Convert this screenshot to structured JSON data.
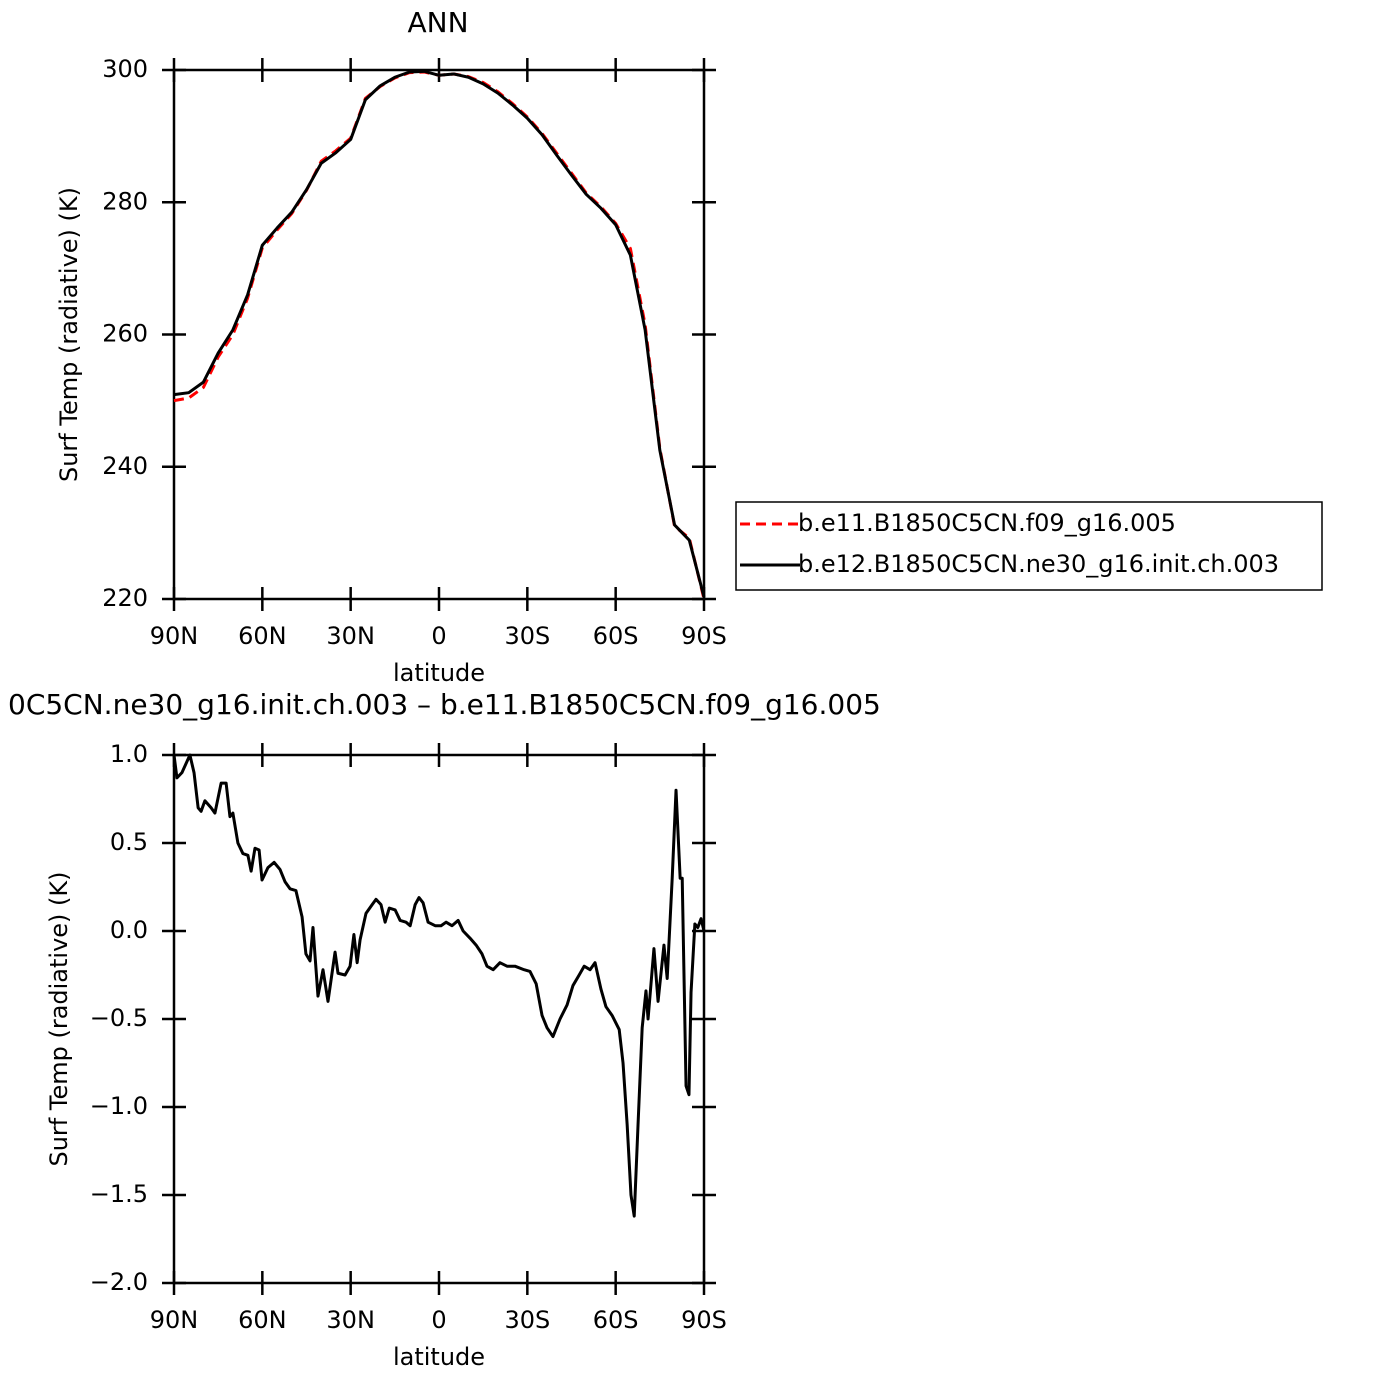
{
  "chart_data": [
    {
      "type": "line",
      "title": "ANN",
      "xlabel": "latitude",
      "ylabel": "Surf Temp (radiative) (K)",
      "xlim": [
        90,
        -90
      ],
      "xticks": [
        {
          "value": 90,
          "label": "90N"
        },
        {
          "value": 60,
          "label": "60N"
        },
        {
          "value": 30,
          "label": "30N"
        },
        0,
        {
          "value": -30,
          "label": "30S"
        },
        {
          "value": -60,
          "label": "60S"
        },
        {
          "value": -90,
          "label": "90S"
        }
      ],
      "ylim": [
        220,
        300
      ],
      "yticks": [
        220,
        240,
        260,
        280,
        300
      ],
      "legend": "right",
      "x": [
        90,
        85,
        80,
        75,
        70,
        65,
        60,
        55,
        50,
        45,
        40,
        35,
        30,
        25,
        20,
        15,
        10,
        5,
        0,
        -5,
        -10,
        -15,
        -20,
        -25,
        -30,
        -35,
        -40,
        -45,
        -50,
        -55,
        -60,
        -65,
        -70,
        -75,
        -80,
        -85,
        -90
      ],
      "series": [
        {
          "name": "b.e11.B1850C5CN.f09_g16.005",
          "color": "#ff0000",
          "style": "dashed",
          "values": [
            250,
            250.4,
            252,
            256.6,
            260,
            265.5,
            273.1,
            275.8,
            278.3,
            281.8,
            286.2,
            287.8,
            289.7,
            295.7,
            297.5,
            298.8,
            299.6,
            299.7,
            299.2,
            299.4,
            299,
            298.1,
            296.7,
            294.9,
            292.9,
            290.4,
            287.4,
            284.4,
            281.4,
            279.3,
            276.8,
            273,
            261.5,
            242.8,
            231,
            229.2,
            220
          ]
        },
        {
          "name": "b.e12.B1850C5CN.ne30_g16.init.ch.003",
          "color": "#000000",
          "style": "solid",
          "values": [
            250.9,
            251.2,
            252.8,
            257.2,
            260.7,
            266,
            273.5,
            276.1,
            278.5,
            281.9,
            285.9,
            287.5,
            289.5,
            295.5,
            297.6,
            298.9,
            299.7,
            299.8,
            299.2,
            299.4,
            298.9,
            297.9,
            296.5,
            294.7,
            292.7,
            290.2,
            287.1,
            284.1,
            281.2,
            279.1,
            276.6,
            272,
            260.7,
            242.5,
            231.2,
            228.9,
            220.3
          ]
        }
      ]
    },
    {
      "type": "line",
      "title": "0C5CN.ne30_g16.init.ch.003 – b.e11.B1850C5CN.f09_g16.005",
      "xlabel": "latitude",
      "ylabel": "Surf Temp (radiative) (K)",
      "xlim": [
        90,
        -90
      ],
      "xticks": [
        {
          "value": 90,
          "label": "90N"
        },
        {
          "value": 60,
          "label": "60N"
        },
        {
          "value": 30,
          "label": "30N"
        },
        0,
        {
          "value": -30,
          "label": "30S"
        },
        {
          "value": -60,
          "label": "60S"
        },
        {
          "value": -90,
          "label": "90S"
        }
      ],
      "ylim": [
        -2,
        1
      ],
      "yticks": [
        {
          "value": -2,
          "label": "−2.0"
        },
        {
          "value": -1.5,
          "label": "−1.5"
        },
        {
          "value": -1,
          "label": "−1.0"
        },
        {
          "value": -0.5,
          "label": "−0.5"
        },
        {
          "value": 0,
          "label": "0.0"
        },
        {
          "value": 0.5,
          "label": "0.5"
        },
        {
          "value": 1,
          "label": "1.0"
        }
      ],
      "x": [
        90,
        89,
        87.3,
        84.6,
        83.2,
        81.8,
        80.8,
        79.5,
        77.4,
        76.1,
        74,
        72.3,
        71,
        70,
        68.3,
        66.6,
        64.9,
        63.8,
        62.5,
        61.1,
        60.1,
        58.1,
        56,
        54,
        52.3,
        50.6,
        48.6,
        46.5,
        45.2,
        43.8,
        42.8,
        41.1,
        39.4,
        37.7,
        35.3,
        34.3,
        31.9,
        30.2,
        28.9,
        27.8,
        26.8,
        24.8,
        22.7,
        21.4,
        19.7,
        18.3,
        16.9,
        14.9,
        13.2,
        11.2,
        9.8,
        8.1,
        6.8,
        5.4,
        3.7,
        1.3,
        -0.7,
        -2.4,
        -4.4,
        -6.5,
        -8.2,
        -10.5,
        -12.6,
        -14.6,
        -16.3,
        -18.4,
        -20.7,
        -23.1,
        -25.8,
        -28.9,
        -30.9,
        -33,
        -35,
        -36.7,
        -38.7,
        -41.1,
        -43.5,
        -45.5,
        -47.6,
        -49.3,
        -51.3,
        -53,
        -55,
        -56.7,
        -58.8,
        -61.2,
        -62.5,
        -63.9,
        -65.2,
        -66.3,
        -67.6,
        -69,
        -70.3,
        -71,
        -73,
        -74.4,
        -76.4,
        -77.5,
        -79.2,
        -80.5,
        -81.9,
        -82.6,
        -83.9,
        -84.9,
        -85.6,
        -86.9,
        -87.9,
        -89,
        -90
      ],
      "series": [
        {
          "color": "#000000",
          "style": "solid",
          "values": [
            1,
            0.87,
            0.9,
            1,
            0.9,
            0.7,
            0.68,
            0.74,
            0.7,
            0.67,
            0.84,
            0.84,
            0.65,
            0.67,
            0.5,
            0.44,
            0.43,
            0.34,
            0.47,
            0.46,
            0.29,
            0.36,
            0.39,
            0.35,
            0.28,
            0.24,
            0.23,
            0.08,
            -0.13,
            -0.17,
            0.02,
            -0.37,
            -0.22,
            -0.4,
            -0.12,
            -0.24,
            -0.25,
            -0.2,
            -0.02,
            -0.18,
            -0.05,
            0.1,
            0.15,
            0.18,
            0.15,
            0.05,
            0.13,
            0.12,
            0.06,
            0.05,
            0.03,
            0.15,
            0.19,
            0.16,
            0.05,
            0.03,
            0.03,
            0.05,
            0.03,
            0.06,
            0,
            -0.04,
            -0.08,
            -0.13,
            -0.2,
            -0.22,
            -0.18,
            -0.2,
            -0.2,
            -0.22,
            -0.23,
            -0.3,
            -0.48,
            -0.55,
            -0.6,
            -0.5,
            -0.42,
            -0.31,
            -0.25,
            -0.2,
            -0.22,
            -0.18,
            -0.33,
            -0.43,
            -0.48,
            -0.56,
            -0.75,
            -1.1,
            -1.5,
            -1.62,
            -1.1,
            -0.55,
            -0.34,
            -0.5,
            -0.1,
            -0.4,
            -0.08,
            -0.27,
            0.3,
            0.8,
            0.3,
            0.3,
            -0.88,
            -0.93,
            -0.35,
            0.04,
            0.02,
            0.07,
            0
          ]
        }
      ]
    }
  ]
}
